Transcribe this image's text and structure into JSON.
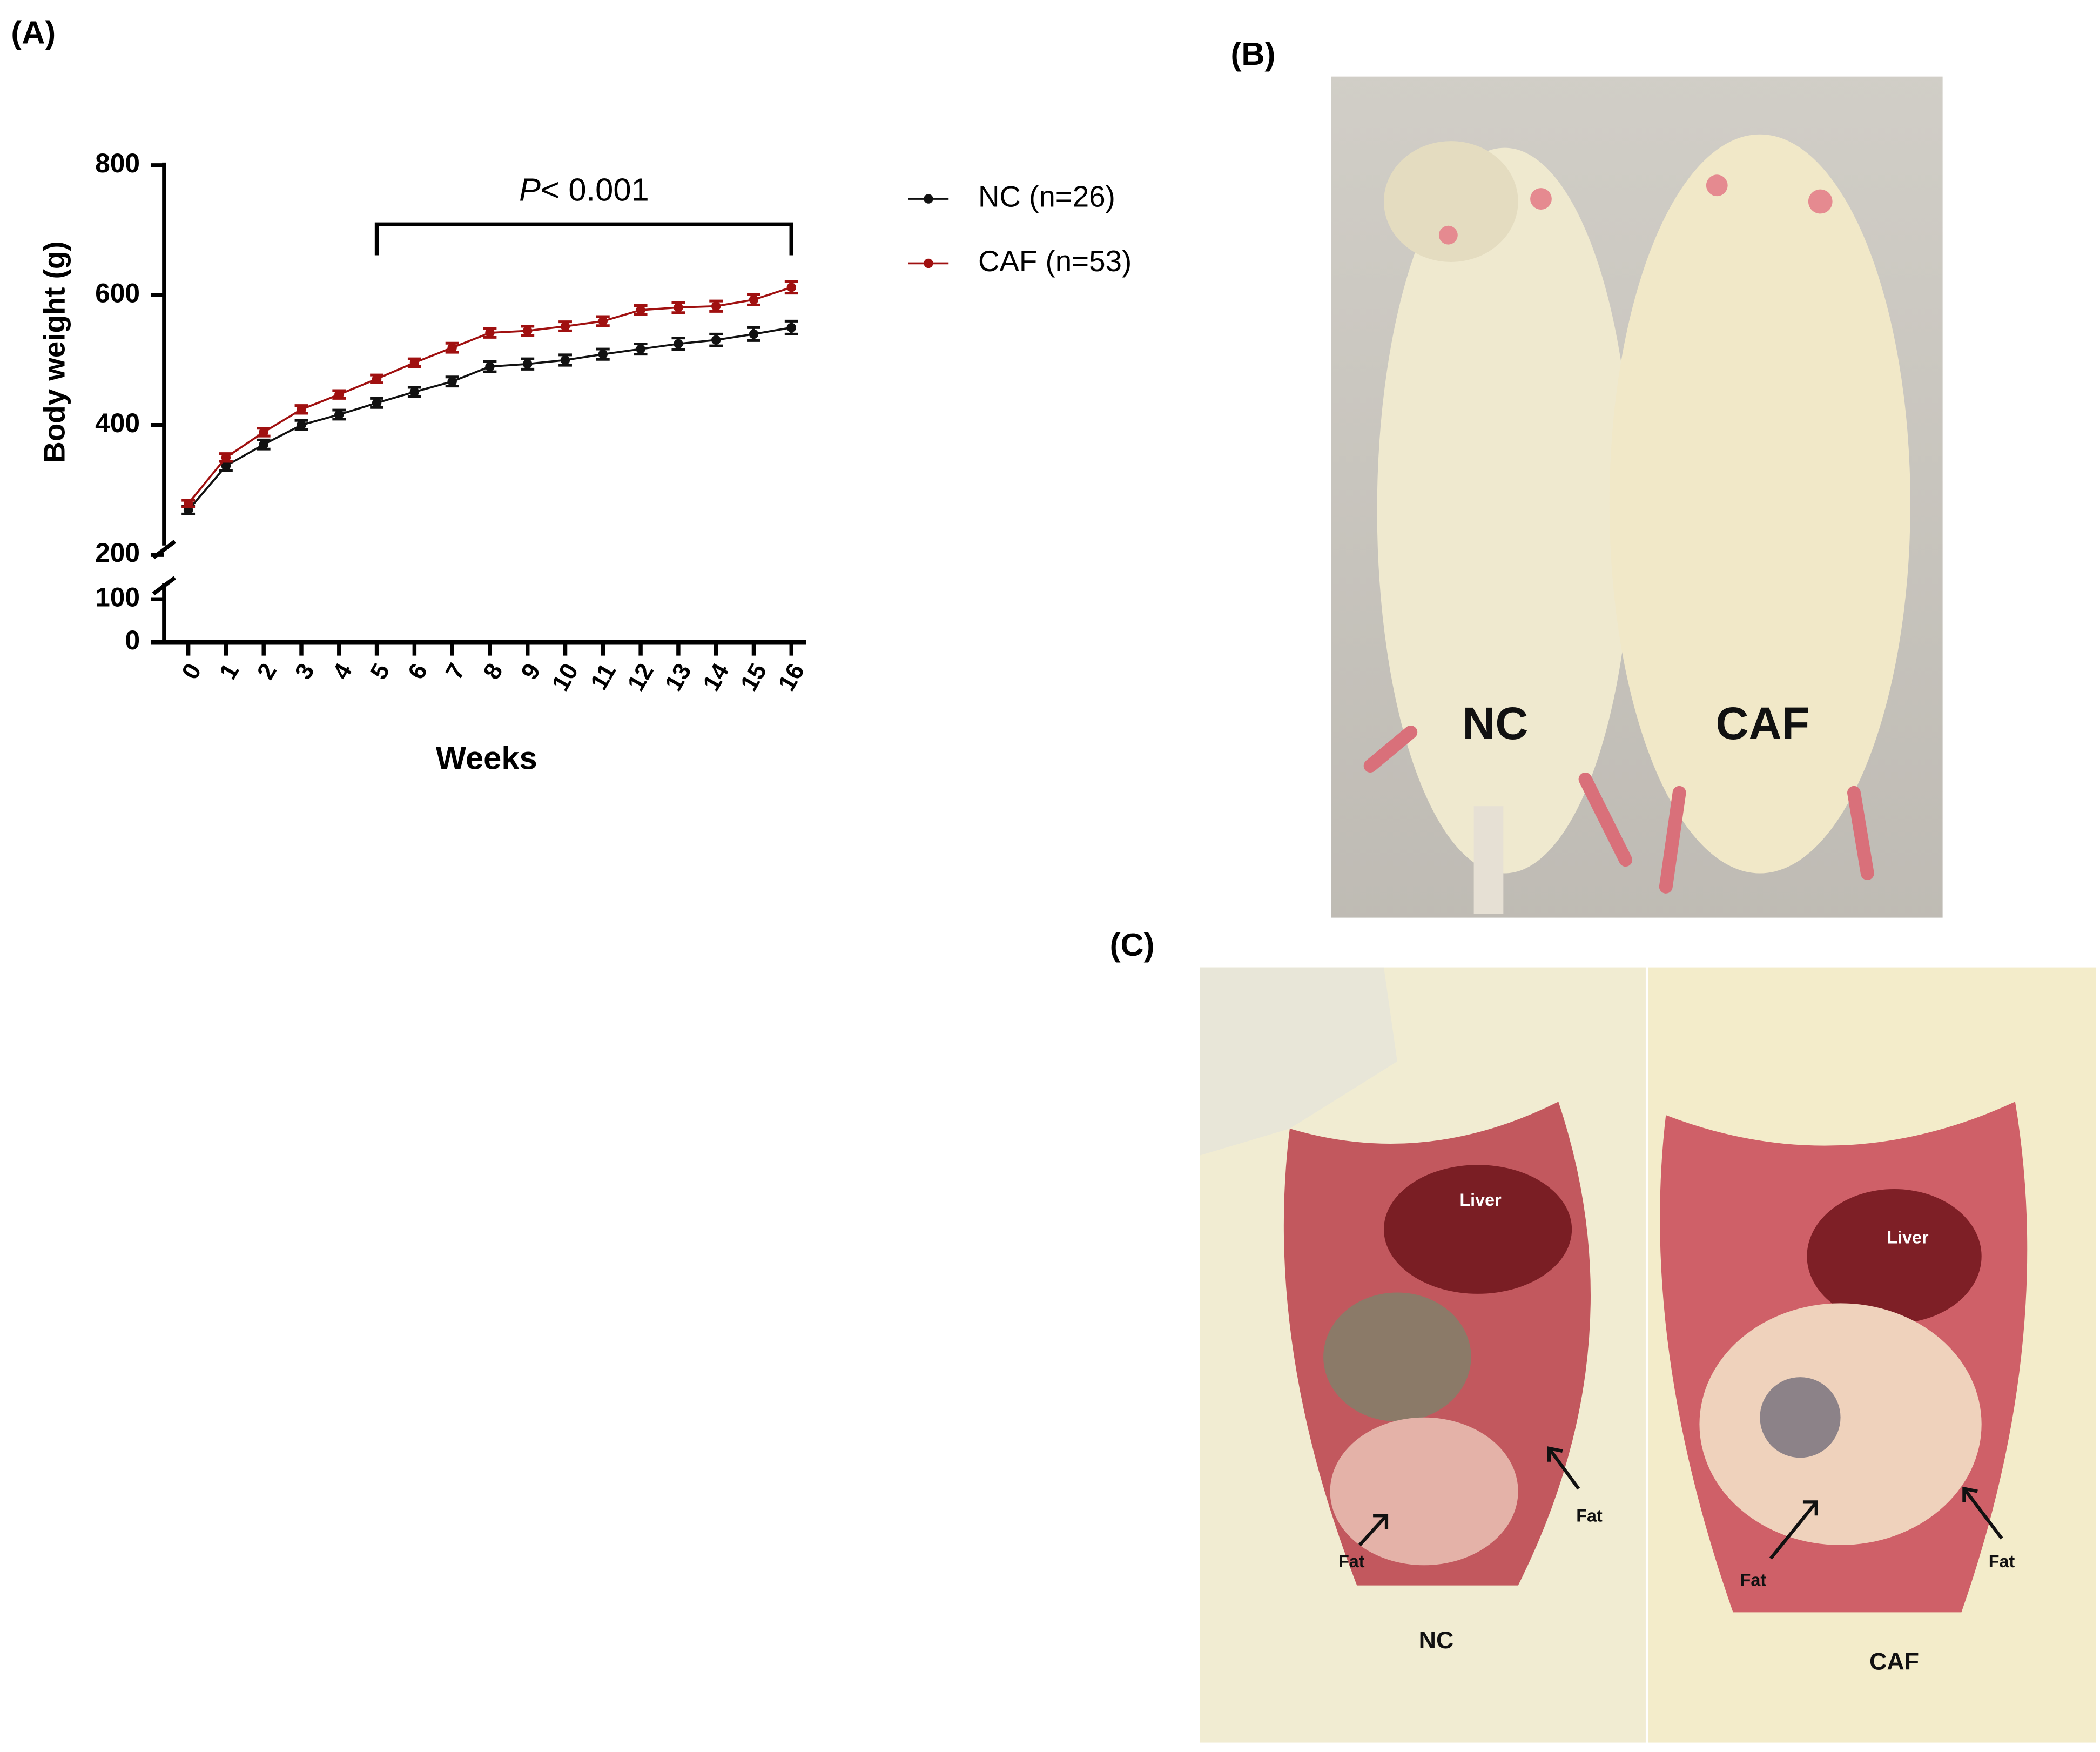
{
  "chart_data": {
    "type": "line",
    "y_label": "Body weight (g)",
    "x_label": "Weeks",
    "x": [
      0,
      1,
      2,
      3,
      4,
      5,
      6,
      7,
      8,
      9,
      10,
      11,
      12,
      13,
      14,
      15,
      16
    ],
    "xlim": [
      0,
      16
    ],
    "xticks": [
      0,
      1,
      2,
      3,
      4,
      5,
      6,
      7,
      8,
      9,
      10,
      11,
      12,
      13,
      14,
      15,
      16
    ],
    "ylim": [
      200,
      800
    ],
    "yticks": [
      200,
      400,
      600,
      800
    ],
    "ylim_break": [
      0,
      100
    ],
    "yticks_break": [
      0,
      100
    ],
    "series": [
      {
        "name": "NC (n=26)",
        "color": "#111111",
        "values": [
          269,
          337,
          370,
          400,
          416,
          434,
          451,
          467,
          490,
          494,
          500,
          509,
          517,
          525,
          531,
          540,
          550
        ],
        "errors": [
          6,
          7,
          7,
          7,
          7,
          7,
          7,
          7,
          8,
          8,
          8,
          8,
          8,
          9,
          9,
          10,
          10
        ]
      },
      {
        "name": "CAF (n=53)",
        "color": "#a01010",
        "values": [
          279,
          350,
          389,
          424,
          447,
          471,
          496,
          519,
          542,
          545,
          552,
          560,
          577,
          581,
          583,
          593,
          612
        ],
        "errors": [
          5,
          6,
          6,
          6,
          6,
          6,
          6,
          7,
          7,
          7,
          7,
          7,
          7,
          8,
          8,
          8,
          9
        ]
      }
    ],
    "annotation": {
      "italic": "P",
      "text": "< 0.001",
      "from": 5,
      "to": 16
    }
  },
  "panel_labels": [
    "(A)",
    "(B)",
    "(C)"
  ],
  "photo_b": {
    "labels": [
      "NC",
      "CAF"
    ]
  },
  "photo_c": {
    "liver": [
      "Liver",
      "Liver"
    ],
    "fat": [
      "Fat",
      "Fat",
      "Fat",
      "Fat"
    ],
    "groups": [
      "NC",
      "CAF"
    ]
  }
}
